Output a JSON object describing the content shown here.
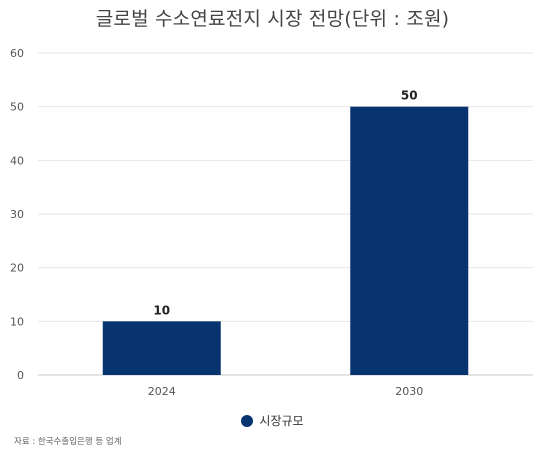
{
  "chart_data": {
    "type": "bar",
    "title": "글로벌 수소연료전지 시장 전망(단위 : 조원)",
    "categories": [
      "2024",
      "2030"
    ],
    "series": [
      {
        "name": "시장규모",
        "values": [
          10,
          50
        ],
        "color": "#07346f"
      }
    ],
    "data_labels": [
      "10",
      "50"
    ],
    "y_ticks": [
      0,
      10,
      20,
      30,
      40,
      50,
      60
    ],
    "ylim": [
      0,
      60
    ],
    "xlabel": "",
    "ylabel": "",
    "grid": true,
    "legend_position": "bottom-center",
    "source_note": "자료 : 한국수출입은행 등 업계"
  }
}
